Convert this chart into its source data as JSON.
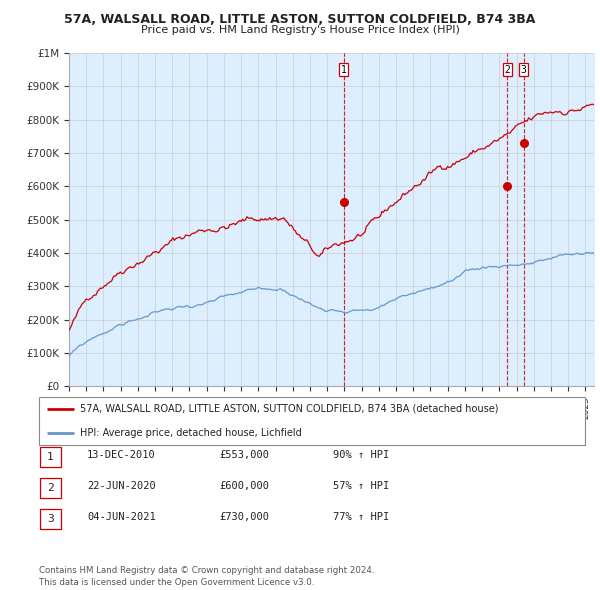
{
  "title": "57A, WALSALL ROAD, LITTLE ASTON, SUTTON COLDFIELD, B74 3BA",
  "subtitle": "Price paid vs. HM Land Registry's House Price Index (HPI)",
  "yticks": [
    0,
    100000,
    200000,
    300000,
    400000,
    500000,
    600000,
    700000,
    800000,
    900000,
    1000000
  ],
  "ytick_labels": [
    "£0",
    "£100K",
    "£200K",
    "£300K",
    "£400K",
    "£500K",
    "£600K",
    "£700K",
    "£800K",
    "£900K",
    "£1M"
  ],
  "xmin": 1995.0,
  "xmax": 2025.5,
  "ymin": 0,
  "ymax": 1000000,
  "sale_dates": [
    2010.96,
    2020.47,
    2021.42
  ],
  "sale_prices": [
    553000,
    600000,
    730000
  ],
  "sale_labels": [
    "1",
    "2",
    "3"
  ],
  "vline_color": "#cc0000",
  "legend_entries": [
    "57A, WALSALL ROAD, LITTLE ASTON, SUTTON COLDFIELD, B74 3BA (detached house)",
    "HPI: Average price, detached house, Lichfield"
  ],
  "table_rows": [
    [
      "1",
      "13-DEC-2010",
      "£553,000",
      "90% ↑ HPI"
    ],
    [
      "2",
      "22-JUN-2020",
      "£600,000",
      "57% ↑ HPI"
    ],
    [
      "3",
      "04-JUN-2021",
      "£730,000",
      "77% ↑ HPI"
    ]
  ],
  "footer": "Contains HM Land Registry data © Crown copyright and database right 2024.\nThis data is licensed under the Open Government Licence v3.0.",
  "red_line_color": "#cc0000",
  "blue_line_color": "#6699cc",
  "bg_fill_color": "#ddeeff",
  "background_color": "#ffffff",
  "grid_color": "#cccccc"
}
